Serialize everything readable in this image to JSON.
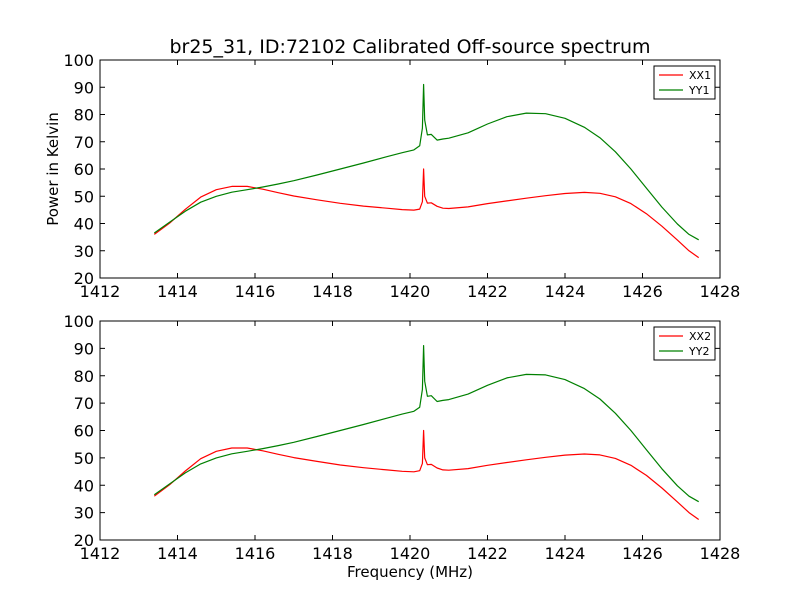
{
  "chart_data": {
    "type": "line",
    "title": "br25_31, ID:72102 Calibrated Off-source spectrum",
    "xlabel": "Frequency (MHz)",
    "ylabel": "Power in Kelvin",
    "xlim": [
      1412,
      1428
    ],
    "ylim": [
      20,
      100
    ],
    "x_ticks": [
      "1412",
      "1414",
      "1416",
      "1418",
      "1420",
      "1422",
      "1424",
      "1426",
      "1428"
    ],
    "y_ticks": [
      "20",
      "30",
      "40",
      "50",
      "60",
      "70",
      "80",
      "90",
      "100"
    ],
    "grid": false,
    "legend_position": "top-right",
    "panels": [
      {
        "series": [
          {
            "name": "XX1",
            "color": "#ff0000",
            "x": [
              1413.4,
              1413.8,
              1414.2,
              1414.6,
              1415.0,
              1415.4,
              1415.8,
              1416.2,
              1416.6,
              1417.0,
              1417.6,
              1418.2,
              1418.8,
              1419.4,
              1419.8,
              1420.1,
              1420.25,
              1420.32,
              1420.35,
              1420.38,
              1420.45,
              1420.55,
              1420.7,
              1420.85,
              1421.0,
              1421.5,
              1422.0,
              1422.5,
              1423.0,
              1423.5,
              1424.0,
              1424.5,
              1424.9,
              1425.3,
              1425.7,
              1426.1,
              1426.5,
              1426.9,
              1427.2,
              1427.45
            ],
            "values": [
              36.0,
              40.2,
              45.2,
              49.7,
              52.4,
              53.6,
              53.6,
              52.6,
              51.3,
              50.1,
              48.7,
              47.4,
              46.4,
              45.6,
              45.1,
              44.9,
              45.3,
              48.0,
              60.0,
              50.0,
              47.5,
              47.6,
              46.3,
              45.6,
              45.5,
              46.1,
              47.3,
              48.3,
              49.3,
              50.2,
              51.0,
              51.4,
              51.1,
              49.8,
              47.3,
              43.6,
              39.0,
              33.9,
              30.0,
              27.5
            ]
          },
          {
            "name": "YY1",
            "color": "#008000",
            "x": [
              1413.4,
              1413.8,
              1414.2,
              1414.6,
              1415.0,
              1415.4,
              1415.8,
              1416.2,
              1416.6,
              1417.0,
              1417.6,
              1418.2,
              1418.8,
              1419.4,
              1419.8,
              1420.1,
              1420.25,
              1420.32,
              1420.35,
              1420.38,
              1420.45,
              1420.55,
              1420.7,
              1420.85,
              1421.0,
              1421.5,
              1422.0,
              1422.5,
              1423.0,
              1423.5,
              1424.0,
              1424.5,
              1424.9,
              1425.3,
              1425.7,
              1426.1,
              1426.5,
              1426.9,
              1427.2,
              1427.45
            ],
            "values": [
              36.5,
              40.5,
              44.5,
              47.8,
              50.0,
              51.5,
              52.4,
              53.4,
              54.5,
              55.7,
              57.8,
              60.0,
              62.2,
              64.5,
              66.0,
              67.0,
              68.5,
              75.0,
              91.0,
              78.0,
              72.5,
              72.7,
              70.6,
              71.0,
              71.3,
              73.3,
              76.5,
              79.2,
              80.5,
              80.3,
              78.6,
              75.3,
              71.5,
              66.3,
              60.0,
              53.0,
              46.0,
              39.8,
              36.0,
              34.0
            ]
          }
        ]
      },
      {
        "series": [
          {
            "name": "XX2",
            "color": "#ff0000",
            "x": [
              1413.4,
              1413.8,
              1414.2,
              1414.6,
              1415.0,
              1415.4,
              1415.8,
              1416.2,
              1416.6,
              1417.0,
              1417.6,
              1418.2,
              1418.8,
              1419.4,
              1419.8,
              1420.1,
              1420.25,
              1420.32,
              1420.35,
              1420.38,
              1420.45,
              1420.55,
              1420.7,
              1420.85,
              1421.0,
              1421.5,
              1422.0,
              1422.5,
              1423.0,
              1423.5,
              1424.0,
              1424.5,
              1424.9,
              1425.3,
              1425.7,
              1426.1,
              1426.5,
              1426.9,
              1427.2,
              1427.45
            ],
            "values": [
              36.0,
              40.2,
              45.2,
              49.7,
              52.4,
              53.6,
              53.6,
              52.6,
              51.3,
              50.1,
              48.7,
              47.4,
              46.4,
              45.6,
              45.1,
              44.9,
              45.3,
              48.0,
              60.0,
              50.0,
              47.5,
              47.6,
              46.3,
              45.6,
              45.5,
              46.1,
              47.3,
              48.3,
              49.3,
              50.2,
              51.0,
              51.4,
              51.1,
              49.8,
              47.3,
              43.6,
              39.0,
              33.9,
              30.0,
              27.5
            ]
          },
          {
            "name": "YY2",
            "color": "#008000",
            "x": [
              1413.4,
              1413.8,
              1414.2,
              1414.6,
              1415.0,
              1415.4,
              1415.8,
              1416.2,
              1416.6,
              1417.0,
              1417.6,
              1418.2,
              1418.8,
              1419.4,
              1419.8,
              1420.1,
              1420.25,
              1420.32,
              1420.35,
              1420.38,
              1420.45,
              1420.55,
              1420.7,
              1420.85,
              1421.0,
              1421.5,
              1422.0,
              1422.5,
              1423.0,
              1423.5,
              1424.0,
              1424.5,
              1424.9,
              1425.3,
              1425.7,
              1426.1,
              1426.5,
              1426.9,
              1427.2,
              1427.45
            ],
            "values": [
              36.5,
              40.5,
              44.5,
              47.8,
              50.0,
              51.5,
              52.4,
              53.4,
              54.5,
              55.7,
              57.8,
              60.0,
              62.2,
              64.5,
              66.0,
              67.0,
              68.5,
              75.0,
              91.0,
              78.0,
              72.5,
              72.7,
              70.6,
              71.0,
              71.3,
              73.3,
              76.5,
              79.2,
              80.5,
              80.3,
              78.6,
              75.3,
              71.5,
              66.3,
              60.0,
              53.0,
              46.0,
              39.8,
              36.0,
              34.0
            ]
          }
        ]
      }
    ]
  }
}
